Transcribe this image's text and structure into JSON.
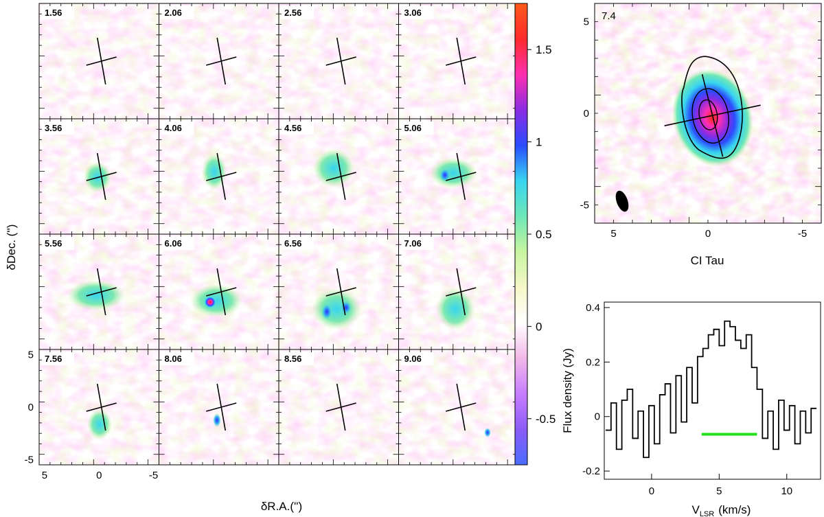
{
  "channel_maps": {
    "channels": [
      "1.56",
      "2.06",
      "2.56",
      "3.06",
      "3.56",
      "4.06",
      "4.56",
      "5.06",
      "5.56",
      "6.06",
      "6.56",
      "7.06",
      "7.56",
      "8.06",
      "8.56",
      "9.06"
    ],
    "xlabel": "δR.A.('')",
    "ylabel": "δDec. ('')",
    "x_ticks": [
      "5",
      "0",
      "-5"
    ],
    "y_ticks": [
      "5",
      "0",
      "-5"
    ],
    "xlim": [
      5.5,
      -5.5
    ],
    "ylim": [
      -5.5,
      5.5
    ],
    "colorbar": {
      "ticks": [
        "1.5",
        "1",
        "0.5",
        "0",
        "-0.5"
      ],
      "range": [
        -0.75,
        1.75
      ],
      "colors": [
        "#4a6cff",
        "#8b5cf6",
        "#c77dff",
        "#f2b8e8",
        "#ffffff",
        "#f5f7c8",
        "#c8f5a0",
        "#6ee7b7",
        "#38d5f0",
        "#2a4cff",
        "#8a2be2",
        "#ff2fb0",
        "#ff2a2a",
        "#ff5a1a"
      ]
    }
  },
  "moment_map": {
    "label": "7.4",
    "source": "CI Tau",
    "x_ticks": [
      "5",
      "0",
      "-5"
    ],
    "y_ticks": [
      "5",
      "0",
      "-5"
    ],
    "xlim": [
      6,
      -6
    ],
    "ylim": [
      -6,
      6
    ]
  },
  "chart_data": {
    "type": "line",
    "xlabel": "V",
    "xlabel_sub": "LSR",
    "xlabel_unit": "(km/s)",
    "ylabel": "Flux density (Jy)",
    "xlim": [
      -3.5,
      12.5
    ],
    "ylim": [
      -0.23,
      0.42
    ],
    "x_ticks": [
      "0",
      "5",
      "10"
    ],
    "y_ticks": [
      "0.4",
      "0.2",
      "0",
      "-0.2"
    ],
    "series": [
      {
        "x": [
          -3.2,
          -2.8,
          -2.4,
          -2.0,
          -1.6,
          -1.2,
          -0.8,
          -0.4,
          0.0,
          0.4,
          0.8,
          1.2,
          1.6,
          2.0,
          2.4,
          2.8,
          3.2,
          3.6,
          4.0,
          4.4,
          4.8,
          5.2,
          5.6,
          6.0,
          6.4,
          6.8,
          7.2,
          7.6,
          8.0,
          8.4,
          8.8,
          9.2,
          9.6,
          10.0,
          10.4,
          10.8,
          11.2,
          11.6,
          12.0
        ],
        "values": [
          -0.05,
          0.05,
          -0.12,
          0.06,
          0.1,
          -0.08,
          0.02,
          -0.15,
          0.04,
          -0.1,
          0.08,
          0.12,
          -0.06,
          0.15,
          -0.02,
          0.18,
          0.05,
          0.22,
          0.25,
          0.3,
          0.32,
          0.26,
          0.35,
          0.33,
          0.28,
          0.25,
          0.3,
          0.18,
          0.1,
          -0.08,
          0.02,
          -0.12,
          0.06,
          -0.05,
          0.04,
          -0.1,
          0.02,
          -0.06,
          0.03
        ]
      }
    ],
    "annotation_bar": {
      "x_start": 3.7,
      "x_end": 7.8,
      "y": -0.065,
      "color": "#22e01a"
    }
  }
}
